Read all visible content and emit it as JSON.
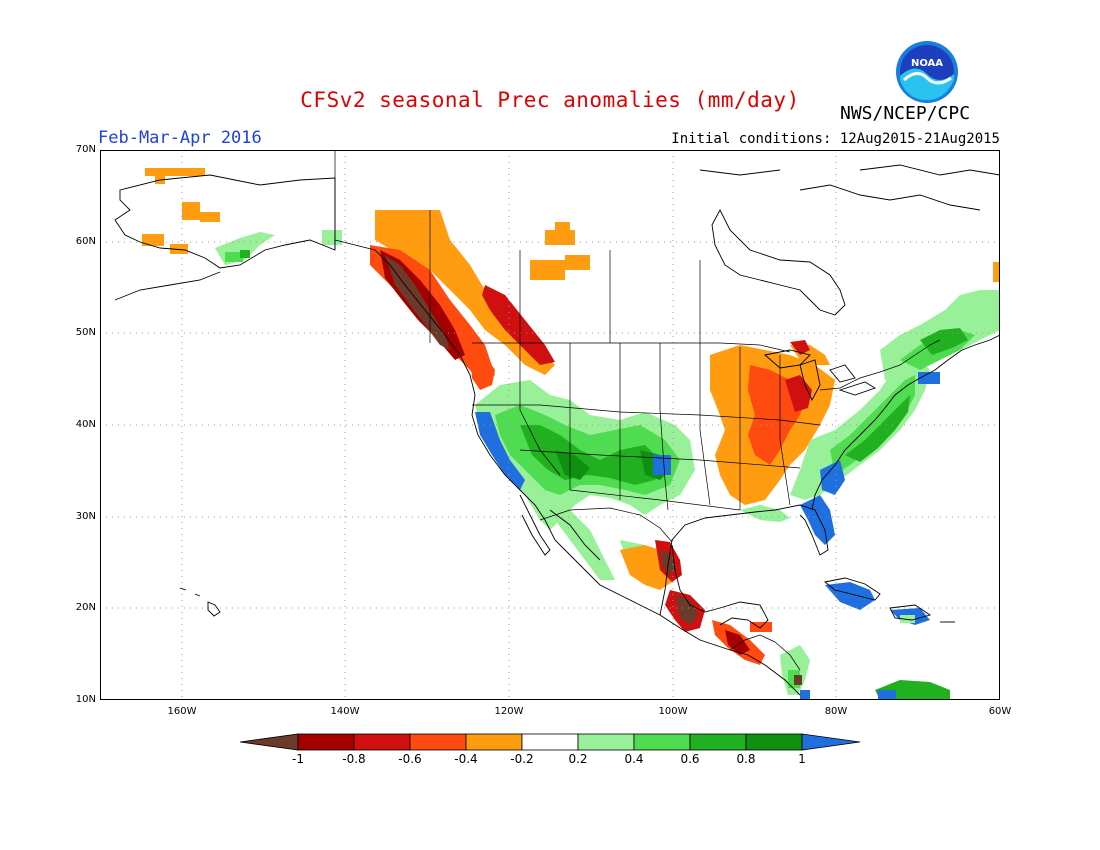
{
  "title": "CFSv2 seasonal Prec anomalies (mm/day)",
  "period": "Feb-Mar-Apr 2016",
  "initial_conditions": "Initial conditions: 12Aug2015-21Aug2015",
  "agency": "NWS/NCEP/CPC",
  "logo_text": "NOAA",
  "lat_labels": [
    "70N",
    "60N",
    "50N",
    "40N",
    "30N",
    "20N",
    "10N"
  ],
  "lon_labels": [
    "160W",
    "140W",
    "120W",
    "100W",
    "80W",
    "60W"
  ],
  "colorbar": {
    "labels": [
      "-1",
      "-0.8",
      "-0.6",
      "-0.4",
      "-0.2",
      "0.2",
      "0.4",
      "0.6",
      "0.8",
      "1"
    ],
    "colors": [
      "#6b3a2a",
      "#a50000",
      "#d01010",
      "#ff4a10",
      "#ff9c10",
      "#ffffff",
      "#98f098",
      "#50dc50",
      "#20b020",
      "#109010",
      "#1f6fdf"
    ]
  },
  "map_colors": {
    "land_outline": "#000000",
    "grid": "#9a9a9a"
  }
}
